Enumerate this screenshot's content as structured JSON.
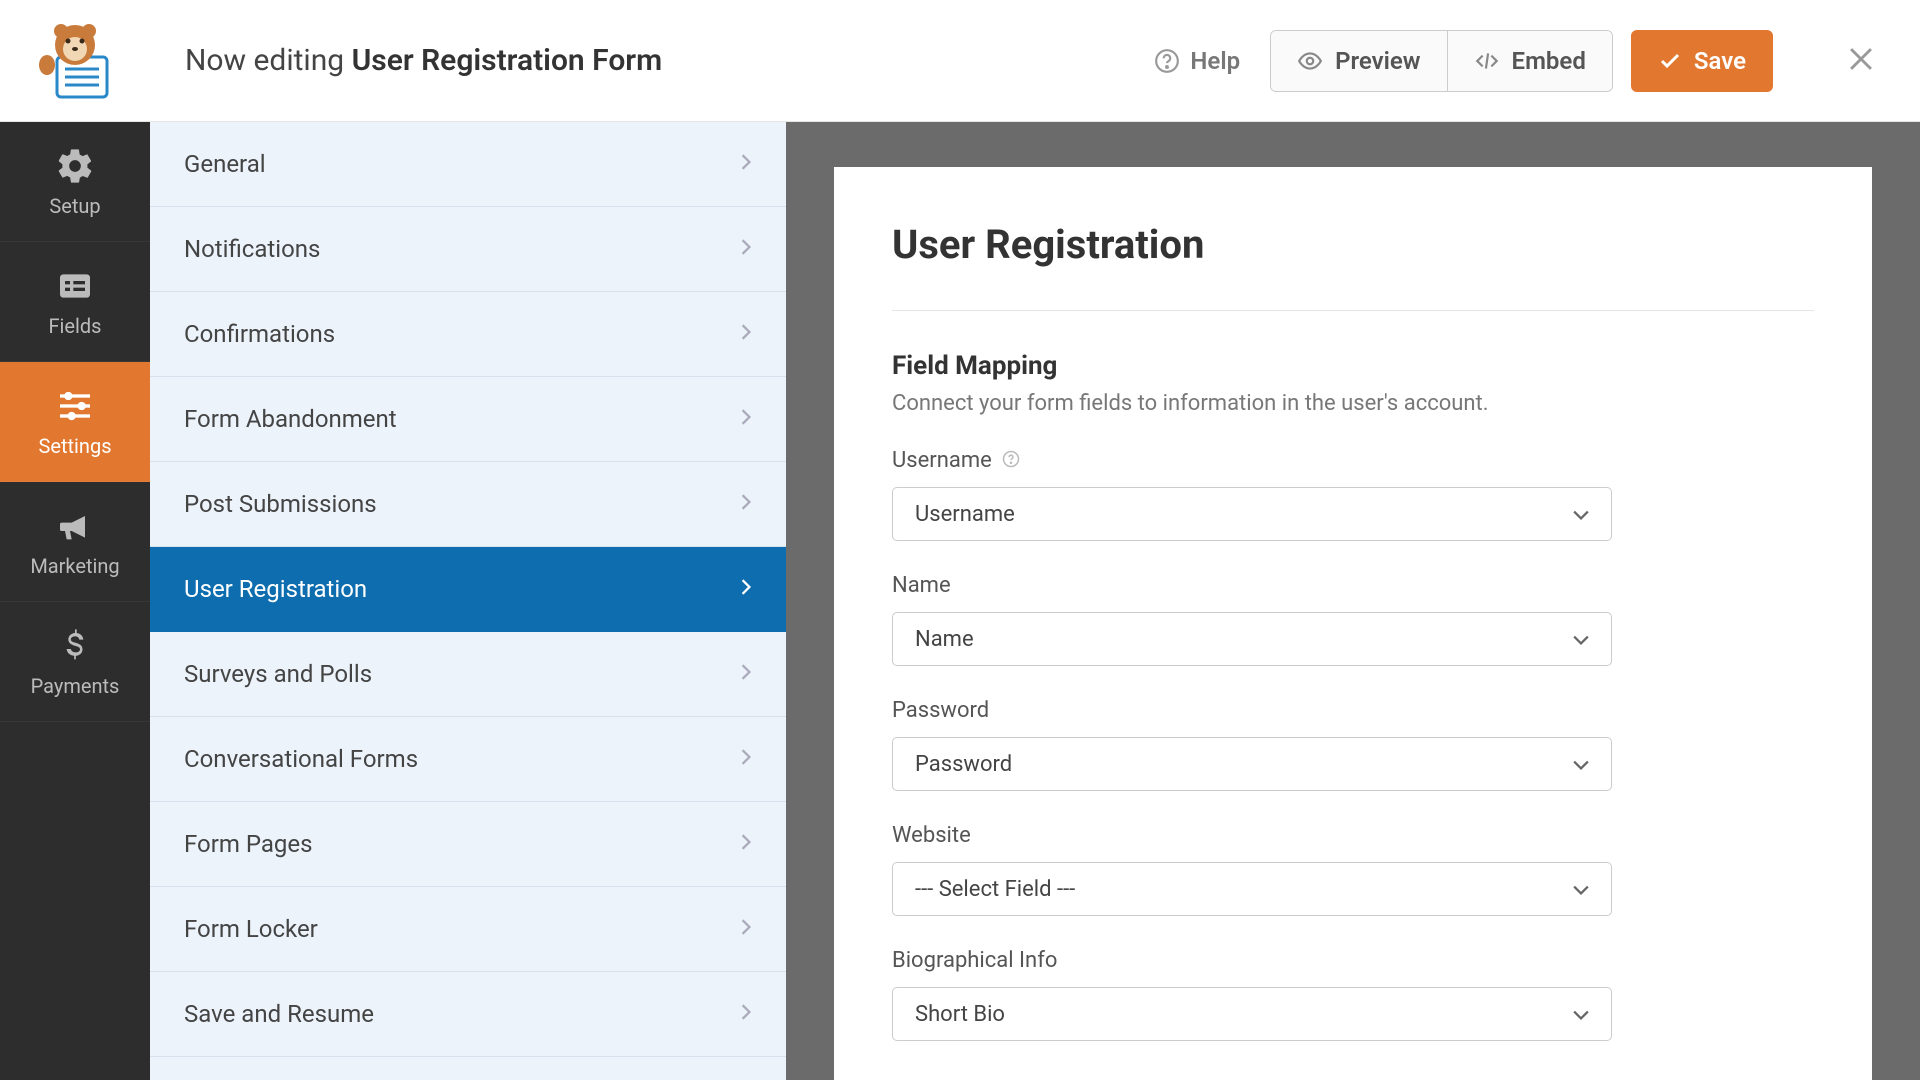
{
  "colors": {
    "accent": "#e27730",
    "rail_bg": "#2d2d2d",
    "settings_bg": "#ecf3fb",
    "settings_active": "#0d6daf",
    "content_bg": "#6b6b6b"
  },
  "topbar": {
    "editing_prefix": "Now editing ",
    "form_name": "User Registration Form",
    "help_label": "Help",
    "preview_label": "Preview",
    "embed_label": "Embed",
    "save_label": "Save"
  },
  "rail": {
    "items": [
      {
        "label": "Setup"
      },
      {
        "label": "Fields"
      },
      {
        "label": "Settings"
      },
      {
        "label": "Marketing"
      },
      {
        "label": "Payments"
      }
    ],
    "active_index": 2
  },
  "settings_list": {
    "items": [
      {
        "label": "General"
      },
      {
        "label": "Notifications"
      },
      {
        "label": "Confirmations"
      },
      {
        "label": "Form Abandonment"
      },
      {
        "label": "Post Submissions"
      },
      {
        "label": "User Registration"
      },
      {
        "label": "Surveys and Polls"
      },
      {
        "label": "Conversational Forms"
      },
      {
        "label": "Form Pages"
      },
      {
        "label": "Form Locker"
      },
      {
        "label": "Save and Resume"
      }
    ],
    "active_index": 5
  },
  "panel": {
    "title": "User Registration",
    "section_title": "Field Mapping",
    "section_desc": "Connect your form fields to information in the user's account.",
    "fields": [
      {
        "label": "Username",
        "value": "Username",
        "has_help": true
      },
      {
        "label": "Name",
        "value": "Name",
        "has_help": false
      },
      {
        "label": "Password",
        "value": "Password",
        "has_help": false
      },
      {
        "label": "Website",
        "value": "--- Select Field ---",
        "has_help": false
      },
      {
        "label": "Biographical Info",
        "value": "Short Bio",
        "has_help": false
      }
    ]
  }
}
